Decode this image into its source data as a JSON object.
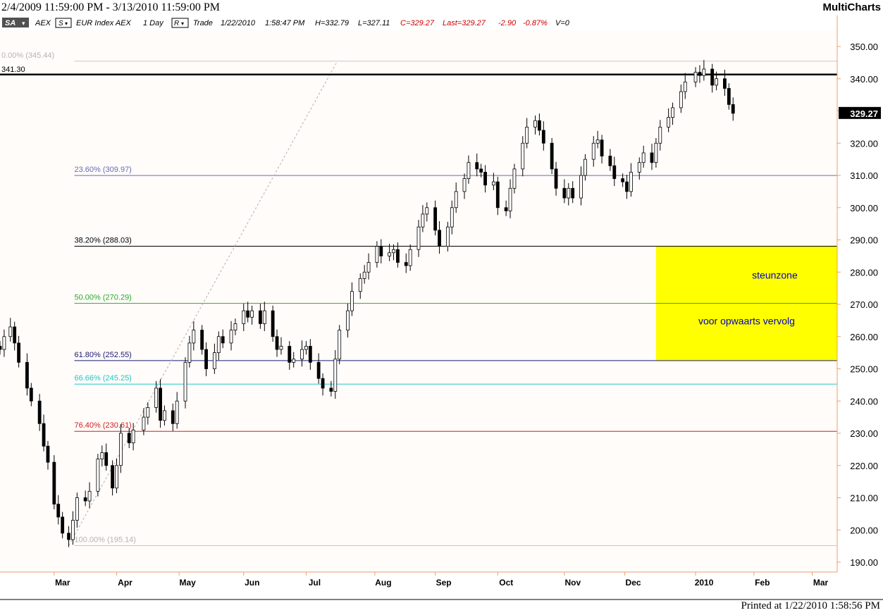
{
  "window": {
    "date_range": "2/4/2009 11:59:00 PM - 3/13/2010 11:59:00 PM",
    "app_name": "MultiCharts",
    "footer": "Printed at 1/22/2010 1:58:56 PM"
  },
  "header": {
    "sa_badge": "SA",
    "symbol": "AEX",
    "s_button": "S",
    "description": "EUR Index AEX",
    "interval": "1 Day",
    "r_button": "R",
    "mode": "Trade",
    "date": "1/22/2010",
    "time": "1:58:47 PM",
    "high": "H=332.79",
    "low": "L=327.11",
    "close": "C=329.27",
    "last": "Last=329.27",
    "change": "-2.90",
    "change_pct": "-0.87%",
    "volume": "V=0"
  },
  "colors": {
    "background": "#fffcfa",
    "axis_line": "#e8a070",
    "candle": "#000000",
    "zone": "#ffff00",
    "zone_text": "#0000c8",
    "negative": "#cc0000"
  },
  "chart_data": {
    "type": "candlestick",
    "ylim": [
      186,
      356
    ],
    "y_ticks": [
      190,
      200,
      210,
      220,
      230,
      240,
      250,
      260,
      270,
      280,
      290,
      300,
      310,
      320,
      330,
      340,
      350
    ],
    "y_tick_labels": [
      "190.00",
      "200.00",
      "210.00",
      "220.00",
      "230.00",
      "240.00",
      "250.00",
      "260.00",
      "270.00",
      "280.00",
      "290.00",
      "300.00",
      "310.00",
      "320.00",
      "330.00",
      "340.00",
      "350.00"
    ],
    "x_ticks": [
      {
        "label": "Mar",
        "date": "2009-03-02"
      },
      {
        "label": "Apr",
        "date": "2009-04-01"
      },
      {
        "label": "May",
        "date": "2009-05-01"
      },
      {
        "label": "Jun",
        "date": "2009-06-01"
      },
      {
        "label": "Jul",
        "date": "2009-07-01"
      },
      {
        "label": "Aug",
        "date": "2009-08-03"
      },
      {
        "label": "Sep",
        "date": "2009-09-01"
      },
      {
        "label": "Oct",
        "date": "2009-10-01"
      },
      {
        "label": "Nov",
        "date": "2009-11-02"
      },
      {
        "label": "Dec",
        "date": "2009-12-01"
      },
      {
        "label": "2010",
        "date": "2010-01-04"
      },
      {
        "label": "Feb",
        "date": "2010-02-01"
      },
      {
        "label": "Mar",
        "date": "2010-03-01"
      }
    ],
    "x_range": [
      "2009-02-04",
      "2010-03-13"
    ],
    "last_price": 329.27,
    "last_price_label": "329.27",
    "horizontal_line": {
      "value": 341.3,
      "label": "341.30"
    },
    "fib_levels": [
      {
        "label": "0.00% (345.44)",
        "value": 345.44,
        "color": "#c8c8c8",
        "text_color": "#b4b4b4"
      },
      {
        "label": "23.60% (309.97)",
        "value": 309.97,
        "color": "#6a6ab4",
        "text_color": "#6a6ab4"
      },
      {
        "label": "38.20% (288.03)",
        "value": 288.03,
        "color": "#000000",
        "text_color": "#000000"
      },
      {
        "label": "50.00% (270.29)",
        "value": 270.29,
        "color": "#2ca82c",
        "text_color": "#2ca82c"
      },
      {
        "label": "61.80% (252.55)",
        "value": 252.55,
        "color": "#1a1a6e",
        "text_color": "#1a1a6e"
      },
      {
        "label": "66.66% (245.25)",
        "value": 245.25,
        "color": "#20c8c8",
        "text_color": "#20c8c8"
      },
      {
        "label": "76.40% (230.61)",
        "value": 230.61,
        "color": "#cc2020",
        "text_color": "#cc2020"
      },
      {
        "label": "100.00% (195.14)",
        "value": 195.14,
        "color": "#c8c8c8",
        "text_color": "#b4b4b4"
      }
    ],
    "fib_trend_line": {
      "start": {
        "date": "2009-03-09",
        "value": 195.14
      },
      "end": {
        "date": "2009-07-16",
        "value": 345.44
      }
    },
    "zone": {
      "from_date": "2009-12-16",
      "to_date": "2010-03-13",
      "low": 252.55,
      "high": 288.03,
      "label1": "steunzone",
      "label2": "voor opwaarts vervolg"
    },
    "close_series": [
      {
        "date": "2009-02-04",
        "value": 256
      },
      {
        "date": "2009-02-06",
        "value": 260
      },
      {
        "date": "2009-02-09",
        "value": 263
      },
      {
        "date": "2009-02-11",
        "value": 258
      },
      {
        "date": "2009-02-13",
        "value": 252
      },
      {
        "date": "2009-02-17",
        "value": 244
      },
      {
        "date": "2009-02-19",
        "value": 240
      },
      {
        "date": "2009-02-23",
        "value": 233
      },
      {
        "date": "2009-02-25",
        "value": 226
      },
      {
        "date": "2009-02-27",
        "value": 221
      },
      {
        "date": "2009-03-02",
        "value": 208
      },
      {
        "date": "2009-03-04",
        "value": 204
      },
      {
        "date": "2009-03-06",
        "value": 199
      },
      {
        "date": "2009-03-09",
        "value": 197
      },
      {
        "date": "2009-03-11",
        "value": 203
      },
      {
        "date": "2009-03-13",
        "value": 210
      },
      {
        "date": "2009-03-17",
        "value": 209
      },
      {
        "date": "2009-03-19",
        "value": 212
      },
      {
        "date": "2009-03-23",
        "value": 222
      },
      {
        "date": "2009-03-25",
        "value": 224
      },
      {
        "date": "2009-03-27",
        "value": 220
      },
      {
        "date": "2009-03-30",
        "value": 213
      },
      {
        "date": "2009-04-01",
        "value": 220
      },
      {
        "date": "2009-04-03",
        "value": 230
      },
      {
        "date": "2009-04-07",
        "value": 227
      },
      {
        "date": "2009-04-09",
        "value": 231
      },
      {
        "date": "2009-04-14",
        "value": 235
      },
      {
        "date": "2009-04-16",
        "value": 238
      },
      {
        "date": "2009-04-20",
        "value": 244
      },
      {
        "date": "2009-04-22",
        "value": 234
      },
      {
        "date": "2009-04-24",
        "value": 237
      },
      {
        "date": "2009-04-28",
        "value": 233
      },
      {
        "date": "2009-04-30",
        "value": 240
      },
      {
        "date": "2009-05-04",
        "value": 252
      },
      {
        "date": "2009-05-06",
        "value": 258
      },
      {
        "date": "2009-05-08",
        "value": 262
      },
      {
        "date": "2009-05-12",
        "value": 256
      },
      {
        "date": "2009-05-14",
        "value": 250
      },
      {
        "date": "2009-05-18",
        "value": 255
      },
      {
        "date": "2009-05-20",
        "value": 260
      },
      {
        "date": "2009-05-22",
        "value": 258
      },
      {
        "date": "2009-05-26",
        "value": 262
      },
      {
        "date": "2009-05-28",
        "value": 264
      },
      {
        "date": "2009-06-01",
        "value": 268
      },
      {
        "date": "2009-06-03",
        "value": 266
      },
      {
        "date": "2009-06-05",
        "value": 268
      },
      {
        "date": "2009-06-09",
        "value": 264
      },
      {
        "date": "2009-06-11",
        "value": 268
      },
      {
        "date": "2009-06-15",
        "value": 260
      },
      {
        "date": "2009-06-17",
        "value": 256
      },
      {
        "date": "2009-06-19",
        "value": 257
      },
      {
        "date": "2009-06-23",
        "value": 252
      },
      {
        "date": "2009-06-25",
        "value": 253
      },
      {
        "date": "2009-06-29",
        "value": 256
      },
      {
        "date": "2009-07-01",
        "value": 257
      },
      {
        "date": "2009-07-03",
        "value": 252
      },
      {
        "date": "2009-07-07",
        "value": 247
      },
      {
        "date": "2009-07-09",
        "value": 244
      },
      {
        "date": "2009-07-13",
        "value": 243
      },
      {
        "date": "2009-07-15",
        "value": 253
      },
      {
        "date": "2009-07-17",
        "value": 262
      },
      {
        "date": "2009-07-21",
        "value": 268
      },
      {
        "date": "2009-07-23",
        "value": 274
      },
      {
        "date": "2009-07-27",
        "value": 278
      },
      {
        "date": "2009-07-29",
        "value": 280
      },
      {
        "date": "2009-07-31",
        "value": 283
      },
      {
        "date": "2009-08-04",
        "value": 288
      },
      {
        "date": "2009-08-06",
        "value": 285
      },
      {
        "date": "2009-08-10",
        "value": 286
      },
      {
        "date": "2009-08-12",
        "value": 287
      },
      {
        "date": "2009-08-14",
        "value": 283
      },
      {
        "date": "2009-08-18",
        "value": 282
      },
      {
        "date": "2009-08-20",
        "value": 287
      },
      {
        "date": "2009-08-24",
        "value": 294
      },
      {
        "date": "2009-08-26",
        "value": 298
      },
      {
        "date": "2009-08-28",
        "value": 300
      },
      {
        "date": "2009-09-01",
        "value": 293
      },
      {
        "date": "2009-09-03",
        "value": 288
      },
      {
        "date": "2009-09-07",
        "value": 294
      },
      {
        "date": "2009-09-09",
        "value": 300
      },
      {
        "date": "2009-09-11",
        "value": 305
      },
      {
        "date": "2009-09-15",
        "value": 309
      },
      {
        "date": "2009-09-17",
        "value": 314
      },
      {
        "date": "2009-09-21",
        "value": 312
      },
      {
        "date": "2009-09-23",
        "value": 311
      },
      {
        "date": "2009-09-25",
        "value": 307
      },
      {
        "date": "2009-09-29",
        "value": 308
      },
      {
        "date": "2009-10-01",
        "value": 300
      },
      {
        "date": "2009-10-05",
        "value": 299
      },
      {
        "date": "2009-10-07",
        "value": 306
      },
      {
        "date": "2009-10-09",
        "value": 312
      },
      {
        "date": "2009-10-13",
        "value": 320
      },
      {
        "date": "2009-10-15",
        "value": 325
      },
      {
        "date": "2009-10-19",
        "value": 327
      },
      {
        "date": "2009-10-21",
        "value": 324
      },
      {
        "date": "2009-10-23",
        "value": 320
      },
      {
        "date": "2009-10-27",
        "value": 312
      },
      {
        "date": "2009-10-29",
        "value": 306
      },
      {
        "date": "2009-11-02",
        "value": 303
      },
      {
        "date": "2009-11-04",
        "value": 306
      },
      {
        "date": "2009-11-06",
        "value": 303
      },
      {
        "date": "2009-11-10",
        "value": 310
      },
      {
        "date": "2009-11-12",
        "value": 315
      },
      {
        "date": "2009-11-16",
        "value": 320
      },
      {
        "date": "2009-11-18",
        "value": 321
      },
      {
        "date": "2009-11-20",
        "value": 316
      },
      {
        "date": "2009-11-24",
        "value": 313
      },
      {
        "date": "2009-11-26",
        "value": 309
      },
      {
        "date": "2009-11-30",
        "value": 308
      },
      {
        "date": "2009-12-02",
        "value": 305
      },
      {
        "date": "2009-12-04",
        "value": 311
      },
      {
        "date": "2009-12-08",
        "value": 314
      },
      {
        "date": "2009-12-10",
        "value": 317
      },
      {
        "date": "2009-12-14",
        "value": 314
      },
      {
        "date": "2009-12-16",
        "value": 320
      },
      {
        "date": "2009-12-18",
        "value": 325
      },
      {
        "date": "2009-12-22",
        "value": 328
      },
      {
        "date": "2009-12-24",
        "value": 331
      },
      {
        "date": "2009-12-28",
        "value": 336
      },
      {
        "date": "2009-12-30",
        "value": 339
      },
      {
        "date": "2010-01-04",
        "value": 342
      },
      {
        "date": "2010-01-06",
        "value": 341
      },
      {
        "date": "2010-01-08",
        "value": 343
      },
      {
        "date": "2010-01-12",
        "value": 338
      },
      {
        "date": "2010-01-14",
        "value": 340
      },
      {
        "date": "2010-01-18",
        "value": 337
      },
      {
        "date": "2010-01-20",
        "value": 332
      },
      {
        "date": "2010-01-22",
        "value": 329.27
      }
    ]
  }
}
